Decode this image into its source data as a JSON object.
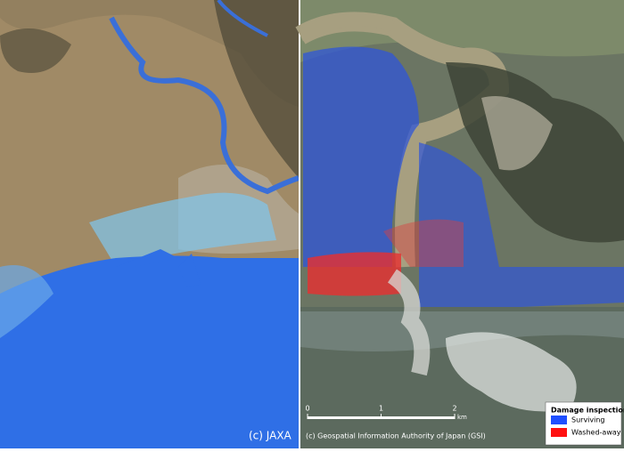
{
  "left_panel": {
    "credit": "(c) JAXA"
  },
  "right_panel": {
    "credit": "(c) Geospatial Information Authority of Japan (GSI)",
    "scale_bar": {
      "ticks": [
        0,
        1,
        2
      ],
      "unit": "km"
    },
    "legend": {
      "title": "Damage inspection",
      "items": [
        {
          "label": "Surviving",
          "color": "#1f4fff"
        },
        {
          "label": "Washed-away",
          "color": "#ff1010"
        }
      ]
    }
  }
}
